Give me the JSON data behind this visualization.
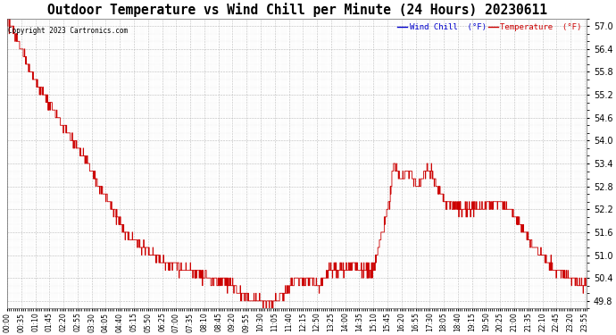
{
  "title": "Outdoor Temperature vs Wind Chill per Minute (24 Hours) 20230611",
  "copyright": "Copyright 2023 Cartronics.com",
  "legend_wind_chill": "Wind Chill  (°F)",
  "legend_temperature": "Temperature  (°F)",
  "ylim": [
    49.6,
    57.2
  ],
  "yticks": [
    49.8,
    50.4,
    51.0,
    51.6,
    52.2,
    52.8,
    53.4,
    54.0,
    54.6,
    55.2,
    55.8,
    56.4,
    57.0
  ],
  "line_color": "#cc0000",
  "wind_chill_color": "#0000cc",
  "temperature_color": "#cc0000",
  "title_fontsize": 10.5,
  "bg_color": "#ffffff",
  "plot_bg_color": "#ffffff",
  "grid_color": "#aaaaaa",
  "num_minutes": 1440,
  "xtick_step": 35
}
